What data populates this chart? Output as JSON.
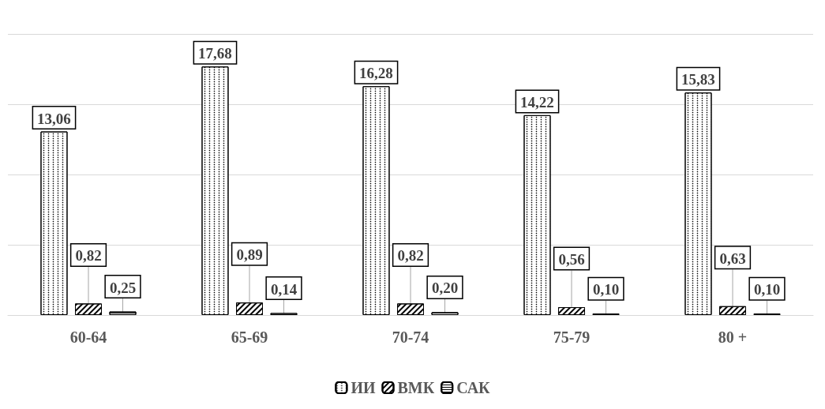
{
  "chart_data": {
    "type": "bar",
    "categories": [
      "60-64",
      "65-69",
      "70-74",
      "75-79",
      "80 +"
    ],
    "series": [
      {
        "name": "ИИ",
        "color": "#000000",
        "values": [
          13.06,
          17.68,
          16.28,
          14.22,
          15.83
        ],
        "value_labels": [
          "13,06",
          "17,68",
          "16,28",
          "14,22",
          "15,83"
        ]
      },
      {
        "name": "ВМК",
        "color": "#000000",
        "values": [
          0.82,
          0.89,
          0.82,
          0.56,
          0.63
        ],
        "value_labels": [
          "0,82",
          "0,89",
          "0,82",
          "0,56",
          "0,63"
        ]
      },
      {
        "name": "САК",
        "color": "#000000",
        "values": [
          0.25,
          0.14,
          0.2,
          0.1,
          0.1
        ],
        "value_labels": [
          "0,25",
          "0,14",
          "0,20",
          "0,10",
          "0,10"
        ]
      }
    ],
    "ylim": [
      0,
      20
    ],
    "yticks": [
      {
        "value": 0,
        "label": null
      },
      {
        "value": 5,
        "label": null
      },
      {
        "value": 10,
        "label": null
      },
      {
        "value": 15,
        "label": null
      },
      {
        "value": 20,
        "label": null
      }
    ],
    "grid": "y",
    "legend": "bottom",
    "tick_labels": "x"
  }
}
